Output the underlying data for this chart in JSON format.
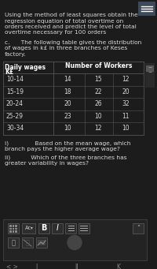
{
  "bg_color": "#1c1c1c",
  "text_color": "#d8d8d8",
  "header_text_color": "#ffffff",
  "top_text_lines": [
    "Using the method of least squares obtain the",
    "regression equation of total overtime on",
    "orders received and predict the level of total",
    "overtime necessary for 100 orders"
  ],
  "section_c_lines": [
    "c.      The following table gives the distribution",
    "of wages in k£ in three branches of Keses",
    "factory."
  ],
  "table_col0_header": [
    "Daily wages",
    "K£"
  ],
  "table_col1_header": "Number of Workers",
  "table_rows": [
    [
      "10-14",
      "14",
      "15",
      "12"
    ],
    [
      "15-19",
      "18",
      "22",
      "20"
    ],
    [
      "20-24",
      "20",
      "26",
      "32"
    ],
    [
      "25-29",
      "23",
      "10",
      "11"
    ],
    [
      "30-34",
      "10",
      "12",
      "10"
    ]
  ],
  "question_i_lines": [
    "i)              Based on the mean wage, which",
    "branch pays the higher average wage?"
  ],
  "question_ii_lines": [
    "ii)           Which of the three branches has",
    "greater variability in wages?"
  ],
  "table_line_color": "#555555",
  "toolbar_border": "#3a3a3a",
  "toolbar_bg": "#232323",
  "btn_bg": "#2e2e2e",
  "btn_border": "#505050",
  "scroll_bg": "#2a2a2a",
  "scroll_thumb": "#555555",
  "menu_bg": "#3d4a5c",
  "nav_color": "#888888"
}
